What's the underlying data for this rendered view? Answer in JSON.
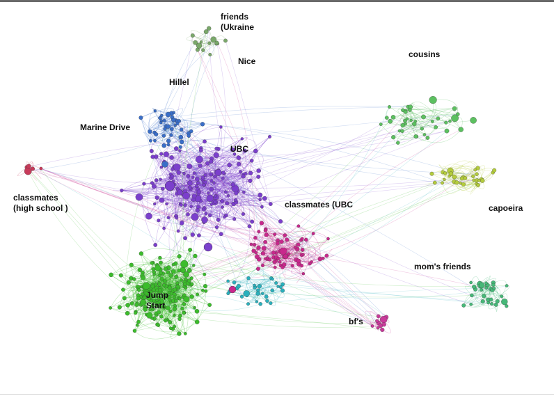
{
  "labels": [
    {
      "lines": [
        "friends",
        "(Ukraine"
      ]
    },
    {
      "lines": [
        "Nice"
      ]
    },
    {
      "lines": [
        "cousins"
      ]
    },
    {
      "lines": [
        "Hillel"
      ]
    },
    {
      "lines": [
        "Marine Drive"
      ]
    },
    {
      "lines": [
        "UBC"
      ]
    },
    {
      "lines": [
        "classmates",
        "(high school )"
      ]
    },
    {
      "lines": [
        "classmates (UBC"
      ]
    },
    {
      "lines": [
        "capoeira"
      ]
    },
    {
      "lines": [
        "mom's friends"
      ]
    },
    {
      "lines": [
        "Jump",
        "Start"
      ]
    },
    {
      "lines": [
        "bf's"
      ]
    }
  ]
}
